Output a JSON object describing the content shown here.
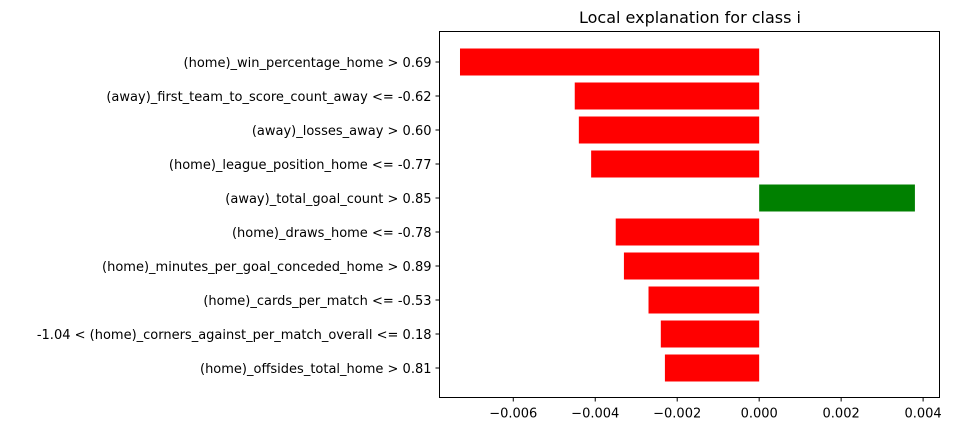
{
  "chart_data": {
    "type": "bar",
    "orientation": "horizontal",
    "title": "Local explanation for class i",
    "xlabel": "",
    "ylabel": "",
    "xlim": [
      -0.0078,
      0.0044
    ],
    "xticks": [
      -0.006,
      -0.004,
      -0.002,
      0.0,
      0.002,
      0.004
    ],
    "xtick_labels": [
      "−0.006",
      "−0.004",
      "−0.002",
      "0.000",
      "0.002",
      "0.004"
    ],
    "grid": false,
    "legend": "none",
    "colors": {
      "negative": "#ff0000",
      "positive": "#008000"
    },
    "categories": [
      "(home)_win_percentage_home > 0.69",
      "(away)_first_team_to_score_count_away <= -0.62",
      "(away)_losses_away > 0.60",
      "(home)_league_position_home <= -0.77",
      "(away)_total_goal_count > 0.85",
      "(home)_draws_home <= -0.78",
      "(home)_minutes_per_goal_conceded_home > 0.89",
      "(home)_cards_per_match <= -0.53",
      "-1.04 < (home)_corners_against_per_match_overall <= 0.18",
      "(home)_offsides_total_home > 0.81"
    ],
    "values": [
      -0.0073,
      -0.0045,
      -0.0044,
      -0.0041,
      0.0038,
      -0.0035,
      -0.0033,
      -0.0027,
      -0.0024,
      -0.0023
    ]
  }
}
